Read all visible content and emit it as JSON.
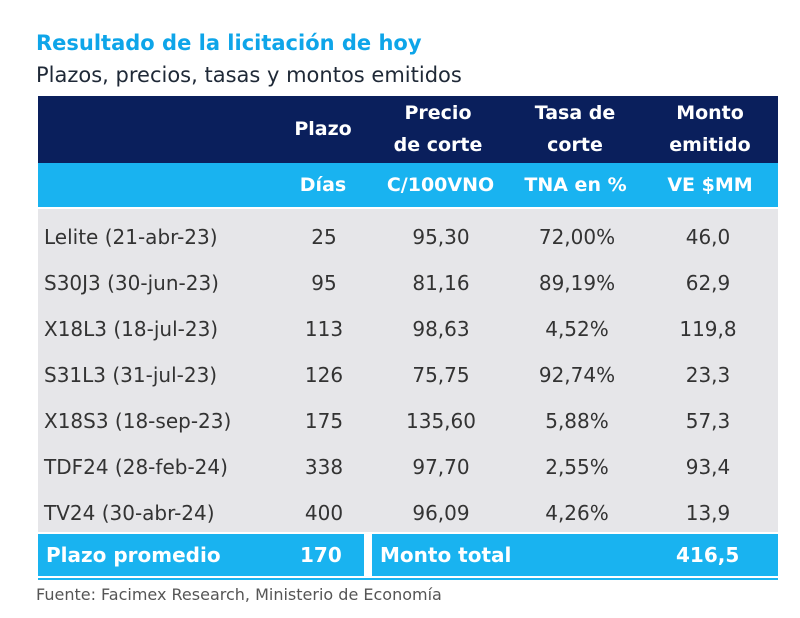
{
  "title": "Resultado de la licitación de hoy",
  "subtitle": "Plazos, precios, tasas y montos emitidos",
  "header": {
    "row1": {
      "plazo": "Plazo",
      "precio_l1": "Precio",
      "precio_l2": "de corte",
      "tasa_l1": "Tasa de",
      "tasa_l2": "corte",
      "monto_l1": "Monto",
      "monto_l2": "emitido"
    },
    "row2": {
      "plazo": "Días",
      "precio": "C/100VNO",
      "tasa": "TNA en %",
      "monto": "VE $MM"
    }
  },
  "rows": [
    {
      "name": "Lelite (21-abr-23)",
      "plazo": "25",
      "precio": "95,30",
      "tasa": "72,00%",
      "monto": "46,0"
    },
    {
      "name": "S30J3 (30-jun-23)",
      "plazo": "95",
      "precio": "81,16",
      "tasa": "89,19%",
      "monto": "62,9"
    },
    {
      "name": "X18L3 (18-jul-23)",
      "plazo": "113",
      "precio": "98,63",
      "tasa": "4,52%",
      "monto": "119,8"
    },
    {
      "name": "S31L3 (31-jul-23)",
      "plazo": "126",
      "precio": "75,75",
      "tasa": "92,74%",
      "monto": "23,3"
    },
    {
      "name": "X18S3 (18-sep-23)",
      "plazo": "175",
      "precio": "135,60",
      "tasa": "5,88%",
      "monto": "57,3"
    },
    {
      "name": "TDF24 (28-feb-24)",
      "plazo": "338",
      "precio": "97,70",
      "tasa": "2,55%",
      "monto": "93,4"
    },
    {
      "name": "TV24 (30-abr-24)",
      "plazo": "400",
      "precio": "96,09",
      "tasa": "4,26%",
      "monto": "13,9"
    }
  ],
  "summary": {
    "plazo_label": "Plazo promedio",
    "plazo_value": "170",
    "monto_label": "Monto total",
    "monto_value": "416,5"
  },
  "source": "Fuente: Facimex Research, Ministerio de Economía",
  "colors": {
    "title": "#0ea5e9",
    "header_dark": "#0a1f5c",
    "header_light": "#19b3f0",
    "body_bg": "#e6e6e9"
  }
}
